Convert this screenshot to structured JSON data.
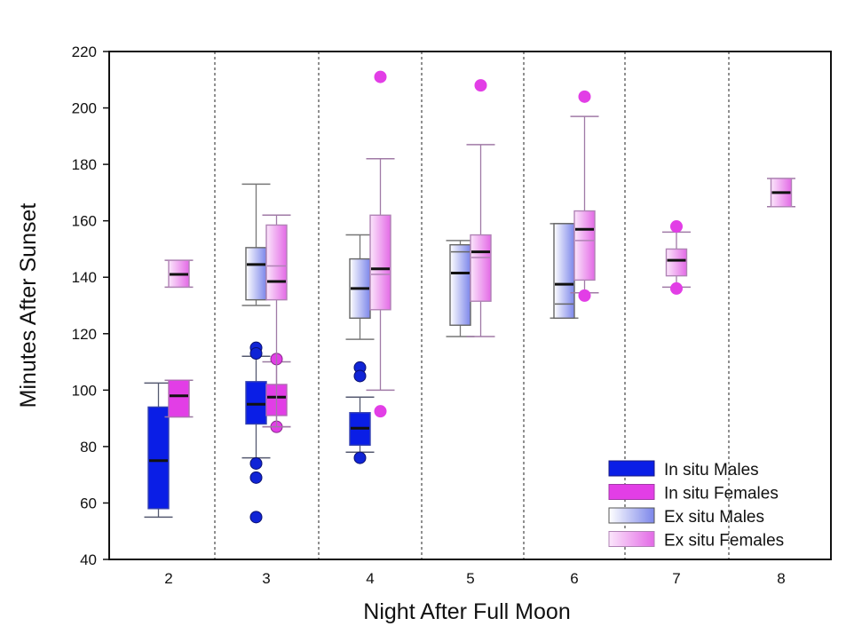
{
  "chart_data": {
    "type": "box",
    "title": "",
    "xlabel": "Night After Full Moon",
    "ylabel": "Minutes After Sunset",
    "ylim": [
      40,
      220
    ],
    "yticks": [
      40,
      60,
      80,
      100,
      120,
      140,
      160,
      180,
      200,
      220
    ],
    "categories": [
      "2",
      "3",
      "4",
      "5",
      "6",
      "7",
      "8"
    ],
    "grid": "dashed vertical separators between nights",
    "legend": {
      "placement": "bottom-right",
      "entries": [
        {
          "key": "in_situ_males",
          "label": "In situ Males"
        },
        {
          "key": "in_situ_females",
          "label": "In situ Females"
        },
        {
          "key": "ex_situ_males",
          "label": "Ex situ Males"
        },
        {
          "key": "ex_situ_females",
          "label": "Ex situ Females"
        }
      ]
    },
    "series_colors": {
      "in_situ_males": "#0a1ee6",
      "in_situ_females": "#e23ee6",
      "ex_situ_males": "#8a94ee",
      "ex_situ_females": "#ea8aee"
    },
    "boxes": [
      {
        "night": "2",
        "series": "in_situ_males",
        "slot": 0,
        "whisker_low": 55,
        "q1": 58,
        "median": 75,
        "q3": 94,
        "whisker_high": 102.5,
        "outliers": []
      },
      {
        "night": "2",
        "series": "in_situ_females",
        "slot": 1,
        "whisker_low": 90.5,
        "q1": 90.5,
        "median": 98,
        "q3": 103.5,
        "whisker_high": 103.5,
        "outliers": []
      },
      {
        "night": "2",
        "series": "ex_situ_females",
        "slot": 1,
        "whisker_low": 136.5,
        "q1": 136.5,
        "median": 141,
        "q3": 146,
        "whisker_high": 146,
        "outliers": []
      },
      {
        "night": "3",
        "series": "in_situ_males",
        "slot": 0,
        "whisker_low": 76,
        "q1": 88,
        "median": 95,
        "q3": 103,
        "whisker_high": 112,
        "outliers": [
          115,
          113,
          74,
          69,
          55
        ]
      },
      {
        "night": "3",
        "series": "in_situ_females",
        "slot": 1,
        "whisker_low": 87,
        "q1": 91,
        "median": 97.5,
        "q3": 102,
        "whisker_high": 110,
        "outliers": [
          111,
          87
        ]
      },
      {
        "night": "3",
        "series": "ex_situ_males",
        "slot": 0,
        "whisker_low": 130,
        "q1": 132,
        "median": 144.5,
        "q3": 150.5,
        "whisker_high": 173,
        "outliers": []
      },
      {
        "night": "3",
        "series": "ex_situ_females",
        "slot": 1,
        "whisker_low": 87,
        "q1": 132,
        "median": 138.5,
        "mean": 144,
        "q3": 158.5,
        "whisker_high": 162,
        "outliers": []
      },
      {
        "night": "4",
        "series": "in_situ_males",
        "slot": 0,
        "whisker_low": 78,
        "q1": 80.5,
        "median": 86.5,
        "q3": 92,
        "whisker_high": 97.5,
        "outliers": [
          76
        ]
      },
      {
        "night": "4",
        "series": "ex_situ_males",
        "slot": 0,
        "whisker_low": 118,
        "q1": 125.5,
        "median": 136,
        "q3": 146.5,
        "whisker_high": 155,
        "outliers": [
          108,
          105
        ]
      },
      {
        "night": "4",
        "series": "ex_situ_females",
        "slot": 1,
        "whisker_low": 100,
        "q1": 128.5,
        "median": 143,
        "mean": 141,
        "q3": 162,
        "whisker_high": 182,
        "outliers": [
          211,
          92.5
        ]
      },
      {
        "night": "5",
        "series": "ex_situ_males",
        "slot": 0,
        "whisker_low": 119,
        "q1": 123,
        "median": 141.5,
        "mean": 149,
        "q3": 151.5,
        "whisker_high": 153,
        "outliers": []
      },
      {
        "night": "5",
        "series": "ex_situ_females",
        "slot": 1,
        "whisker_low": 119,
        "q1": 131.5,
        "median": 149,
        "mean": 147,
        "q3": 155,
        "whisker_high": 187,
        "outliers": [
          208
        ]
      },
      {
        "night": "6",
        "series": "ex_situ_males",
        "slot": 0,
        "whisker_low": 125.5,
        "q1": 125.5,
        "median": 137.5,
        "mean": 130.5,
        "q3": 159,
        "whisker_high": 159,
        "outliers": []
      },
      {
        "night": "6",
        "series": "ex_situ_females",
        "slot": 1,
        "whisker_low": 134.5,
        "q1": 139,
        "median": 157,
        "mean": 153,
        "q3": 163.5,
        "whisker_high": 197,
        "outliers": [
          204,
          133.5
        ]
      },
      {
        "night": "7",
        "series": "ex_situ_females",
        "slot": 0.5,
        "whisker_low": 136.5,
        "q1": 140.5,
        "median": 146,
        "q3": 150,
        "whisker_high": 156,
        "outliers": [
          158,
          136
        ]
      },
      {
        "night": "8",
        "series": "ex_situ_females",
        "slot": 0.5,
        "whisker_low": 165,
        "q1": 165,
        "median": 170,
        "q3": 175,
        "whisker_high": 175,
        "outliers": []
      }
    ]
  }
}
